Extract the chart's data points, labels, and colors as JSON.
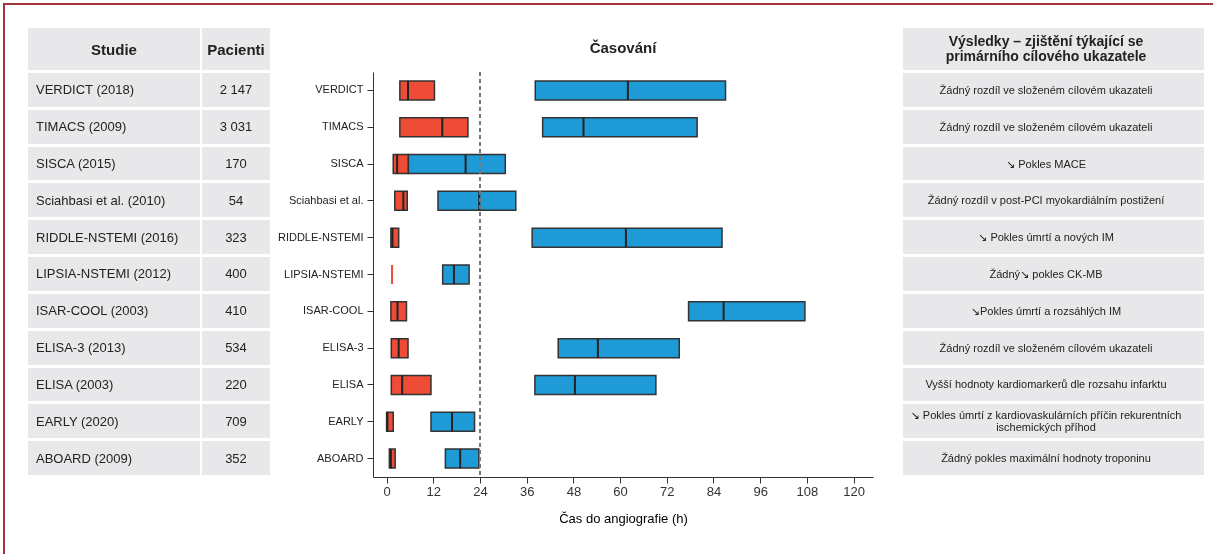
{
  "chart_data": {
    "type": "box",
    "orientation": "horizontal",
    "title": "Časování",
    "xlabel": "Čas do angiografie (h)",
    "categories": [
      "VERDICT",
      "TIMACS",
      "SISCA",
      "Sciahbasi et al.",
      "RIDDLE-NSTEMI",
      "LIPSIA-NSTEMI",
      "ISAR-COOL",
      "ELISA-3",
      "ELISA",
      "EARLY",
      "ABOARD"
    ],
    "series": [
      {
        "color": "#ee4c37",
        "boxes": [
          {
            "low": 3.4,
            "q1": 3.4,
            "median": 5.5,
            "q3": 12.3,
            "high": 12.3
          },
          {
            "low": 3.4,
            "q1": 3.4,
            "median": 14.3,
            "q3": 20.9,
            "high": 20.9
          },
          {
            "low": 1.7,
            "q1": 1.7,
            "median": 2.7,
            "q3": 5.6,
            "high": 5.6
          },
          {
            "low": 2.1,
            "q1": 2.1,
            "median": 4.3,
            "q3": 5.3,
            "high": 5.3
          },
          {
            "low": 1.1,
            "q1": 1.1,
            "median": 1.5,
            "q3": 3.1,
            "high": 3.1
          },
          {
            "low": 1.4,
            "q1": 1.4,
            "median": 1.4,
            "q3": 1.4,
            "high": 1.4
          },
          {
            "low": 1.1,
            "q1": 1.1,
            "median": 2.8,
            "q3": 5.1,
            "high": 5.1
          },
          {
            "low": 1.2,
            "q1": 1.2,
            "median": 3.1,
            "q3": 5.5,
            "high": 5.5
          },
          {
            "low": 1.2,
            "q1": 1.2,
            "median": 4,
            "q3": 11.4,
            "high": 11.4
          },
          {
            "low": 0,
            "q1": 0,
            "median": 0.2,
            "q3": 1.7,
            "high": 1.7
          },
          {
            "low": 0.7,
            "q1": 0.7,
            "median": 1.1,
            "q3": 2.2,
            "high": 2.2
          }
        ]
      },
      {
        "color": "#1e9ad6",
        "boxes": [
          {
            "low": 38.2,
            "q1": 38.2,
            "median": 62,
            "q3": 87.1,
            "high": 87.1
          },
          {
            "low": 40.1,
            "q1": 40.1,
            "median": 50.6,
            "q3": 79.8,
            "high": 79.8
          },
          {
            "low": 5.6,
            "q1": 5.6,
            "median": 20.3,
            "q3": 30.5,
            "high": 30.5
          },
          {
            "low": 13.2,
            "q1": 13.2,
            "median": 23.8,
            "q3": 33.2,
            "high": 33.2
          },
          {
            "low": 37.4,
            "q1": 37.4,
            "median": 61.5,
            "q3": 86.2,
            "high": 86.2
          },
          {
            "low": 14.4,
            "q1": 14.4,
            "median": 17.3,
            "q3": 21.2,
            "high": 21.2
          },
          {
            "low": 77.6,
            "q1": 77.6,
            "median": 86.6,
            "q3": 107.5,
            "high": 107.5
          },
          {
            "low": 44.1,
            "q1": 44.1,
            "median": 54.3,
            "q3": 75.2,
            "high": 75.2
          },
          {
            "low": 38.1,
            "q1": 38.1,
            "median": 48.4,
            "q3": 69.2,
            "high": 69.2
          },
          {
            "low": 11.4,
            "q1": 11.4,
            "median": 16.8,
            "q3": 22.6,
            "high": 22.6
          },
          {
            "low": 15.1,
            "q1": 15.1,
            "median": 18.9,
            "q3": 23.7,
            "high": 23.7
          }
        ]
      }
    ],
    "xlim": [
      -3.5,
      125
    ],
    "xticks": [
      0,
      12,
      24,
      36,
      48,
      60,
      72,
      84,
      96,
      108,
      120
    ],
    "ref_lines": [
      {
        "axis": "x",
        "value": 24,
        "line_style": "dashed",
        "color": "#777777"
      }
    ],
    "annotations": [
      "Studie",
      "Pacienti",
      "Výsledky – zjištění týkající se primárního cílového ukazatele",
      "VERDICT (2018)",
      "2 147",
      "Žádný rozdíl ve složeném cílovém ukazateli",
      "TIMACS (2009)",
      "3 031",
      "Žádný rozdíl ve složeném cílovém ukazateli",
      "SISCA (2015)",
      "170",
      "↘ Pokles MACE",
      "Sciahbasi et al. (2010)",
      "54",
      "Žádný rozdíl v post-PCI myokardiálním postižení",
      "RIDDLE-NSTEMI (2016)",
      "323",
      "↘ Pokles úmrtí a nových IM",
      "LIPSIA-NSTEMI (2012)",
      "400",
      "Žádný↘  pokles CK-MB",
      "ISAR-COOL (2003)",
      "410",
      "↘Pokles úmrtí a rozsáhlých IM",
      "ELISA-3 (2013)",
      "534",
      "Žádný rozdíl ve složeném cílovém ukazateli",
      "ELISA (2003)",
      "220",
      "Vyšší hodnoty kardiomarkerů dle rozsahu infarktu",
      "EARLY (2020)",
      "709",
      "↘ Pokles úmrtí z kardiovaskulárních příčin rekurentních ischemických příhod",
      "ABOARD (2009)",
      "352",
      "Žádný pokles maximální hodnoty troponinu"
    ]
  }
}
